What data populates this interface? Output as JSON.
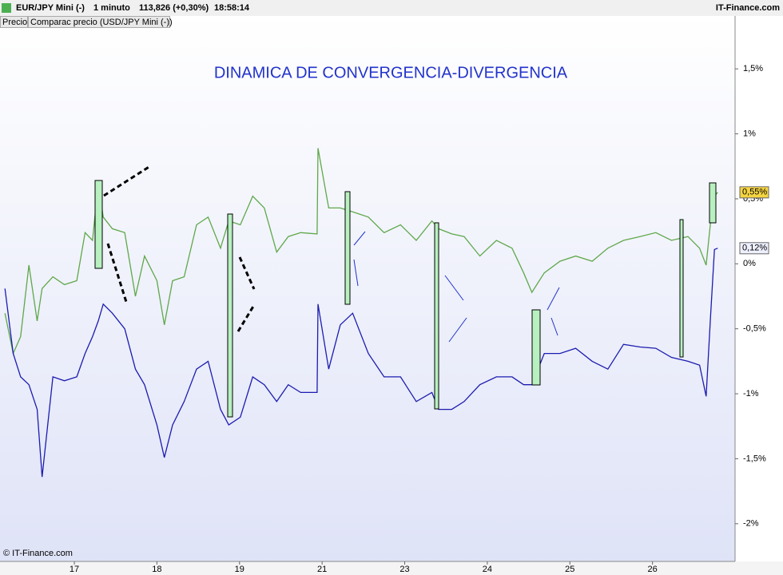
{
  "header": {
    "symbol": "EUR/JPY Mini (-)",
    "interval": "1 minuto",
    "price": "113,826 (+0,30%)",
    "time": "18:58:14",
    "brand": "IT-Finance.com"
  },
  "tabs": [
    "Precio",
    "Comparac precio (USD/JPY Mini (-))"
  ],
  "footer": "© IT-Finance.com",
  "chart_data": {
    "type": "line",
    "title": "DINAMICA DE CONVERGENCIA-DIVERGENCIA",
    "x": [
      -0.84,
      -0.74,
      -0.65,
      -0.55,
      -0.45,
      -0.39,
      -0.26,
      -0.12,
      0.03,
      0.13,
      0.22,
      0.29,
      0.35,
      0.46,
      0.61,
      0.74,
      0.85,
      1.0,
      1.09,
      1.19,
      1.33,
      1.48,
      1.62,
      1.77,
      1.87,
      2.01,
      2.16,
      2.3,
      2.45,
      2.59,
      2.74,
      2.94,
      2.95,
      3.08,
      3.22,
      3.37,
      3.56,
      3.75,
      3.95,
      4.14,
      4.33,
      4.41,
      4.57,
      4.72,
      4.91,
      5.11,
      5.3,
      5.44,
      5.54,
      5.69,
      5.88,
      6.07,
      6.27,
      6.46,
      6.65,
      6.85,
      7.04,
      7.23,
      7.43,
      7.57,
      7.65,
      7.7,
      7.75,
      7.79
    ],
    "series": [
      {
        "name": "EUR/JPY Mini (-)",
        "color": "#5fa84a",
        "values": [
          -0.38,
          -0.69,
          -0.56,
          -0.01,
          -0.44,
          -0.19,
          -0.1,
          -0.16,
          -0.13,
          0.24,
          0.18,
          0.62,
          0.36,
          0.27,
          0.24,
          -0.25,
          0.06,
          -0.13,
          -0.47,
          -0.13,
          -0.1,
          0.3,
          0.36,
          0.12,
          0.33,
          0.3,
          0.52,
          0.43,
          0.09,
          0.21,
          0.24,
          0.23,
          0.89,
          0.43,
          0.43,
          0.4,
          0.36,
          0.24,
          0.3,
          0.18,
          0.33,
          0.27,
          0.23,
          0.21,
          0.06,
          0.18,
          0.12,
          -0.07,
          -0.22,
          -0.07,
          0.02,
          0.06,
          0.02,
          0.12,
          0.18,
          0.21,
          0.24,
          0.18,
          0.21,
          0.12,
          -0.01,
          0.3,
          0.52,
          0.55
        ],
        "last_value": {
          "value": 0.55,
          "label": "0,55%"
        },
        "label_bg": "#f5d442"
      },
      {
        "name": "USD/JPY Mini (-)",
        "color": "#1c1cb0",
        "values": [
          -0.19,
          -0.69,
          -0.87,
          -0.93,
          -1.12,
          -1.64,
          -0.87,
          -0.9,
          -0.87,
          -0.69,
          -0.56,
          -0.44,
          -0.31,
          -0.38,
          -0.5,
          -0.81,
          -0.93,
          -1.24,
          -1.49,
          -1.24,
          -1.06,
          -0.81,
          -0.75,
          -1.12,
          -1.24,
          -1.18,
          -0.87,
          -0.93,
          -1.06,
          -0.93,
          -0.99,
          -0.99,
          -0.31,
          -0.81,
          -0.47,
          -0.38,
          -0.69,
          -0.87,
          -0.87,
          -1.06,
          -0.99,
          -1.12,
          -1.12,
          -1.06,
          -0.93,
          -0.87,
          -0.87,
          -0.93,
          -0.93,
          -0.69,
          -0.69,
          -0.65,
          -0.75,
          -0.81,
          -0.62,
          -0.64,
          -0.65,
          -0.72,
          -0.75,
          -0.78,
          -1.02,
          -0.44,
          0.11,
          0.12
        ],
        "last_value": {
          "value": 0.12,
          "label": "0,12%"
        },
        "label_bg": "#eef0ff"
      }
    ],
    "xlim": [
      -0.9,
      8.0
    ],
    "xticks": [
      {
        "value": 0,
        "label": "17"
      },
      {
        "value": 1,
        "label": "18"
      },
      {
        "value": 2,
        "label": "19"
      },
      {
        "value": 3,
        "label": "21"
      },
      {
        "value": 4,
        "label": "23"
      },
      {
        "value": 5,
        "label": "24"
      },
      {
        "value": 6,
        "label": "25"
      },
      {
        "value": 7,
        "label": "26"
      }
    ],
    "ylim": [
      -2.29,
      1.907
    ],
    "yticks": [
      {
        "value": 1.5,
        "label": "1,5%"
      },
      {
        "value": 1,
        "label": "1%"
      },
      {
        "value": 0.5,
        "label": "0,5%"
      },
      {
        "value": 0,
        "label": "0%"
      },
      {
        "value": -0.5,
        "label": "-0,5%"
      },
      {
        "value": -1,
        "label": "-1%"
      },
      {
        "value": -1.5,
        "label": "-1,5%"
      },
      {
        "value": -2,
        "label": "-2%"
      }
    ]
  }
}
